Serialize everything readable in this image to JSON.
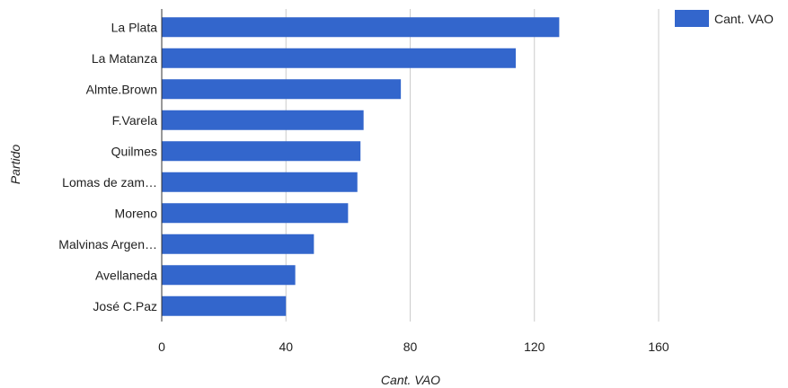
{
  "chart_data": {
    "type": "bar",
    "orientation": "horizontal",
    "categories": [
      "La Plata",
      "La Matanza",
      "Almte.Brown",
      "F.Varela",
      "Quilmes",
      "Lomas de zam…",
      "Moreno",
      "Malvinas Argen…",
      "Avellaneda",
      "José C.Paz"
    ],
    "series": [
      {
        "name": "Cant. VAO",
        "values": [
          128,
          114,
          77,
          65,
          64,
          63,
          60,
          49,
          43,
          40
        ]
      }
    ],
    "xlabel": "Cant. VAO",
    "ylabel": "Partido",
    "xlim": [
      0,
      160
    ],
    "xticks": [
      "0",
      "40",
      "80",
      "120",
      "160"
    ],
    "grid": true,
    "legend_position": "top-right",
    "colors": {
      "bar": "#3366cc",
      "grid": "#cccccc",
      "axis": "#333333"
    }
  }
}
